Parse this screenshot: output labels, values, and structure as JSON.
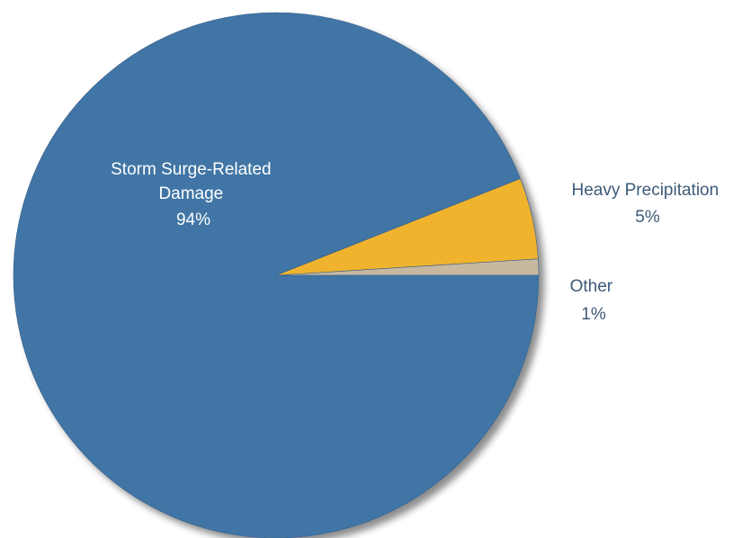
{
  "chart_data": {
    "type": "pie",
    "title": "",
    "unit": "%",
    "start_angle_deg": 0,
    "direction": "counterclockwise",
    "slices": [
      {
        "name": "Storm Surge-Related Damage",
        "label_lines": [
          "Storm Surge-Related",
          "Damage"
        ],
        "value": 94,
        "value_label": "94%",
        "color": "#4174a5",
        "label_color": "#ffffff"
      },
      {
        "name": "Heavy Precipitation",
        "label_lines": [
          "Heavy Precipitation"
        ],
        "value": 5,
        "value_label": "5%",
        "color": "#f0b32d",
        "label_color": "#3d5a78"
      },
      {
        "name": "Other",
        "label_lines": [
          "Other"
        ],
        "value": 1,
        "value_label": "1%",
        "color": "#c7b9a0",
        "label_color": "#3d5a78"
      }
    ]
  }
}
